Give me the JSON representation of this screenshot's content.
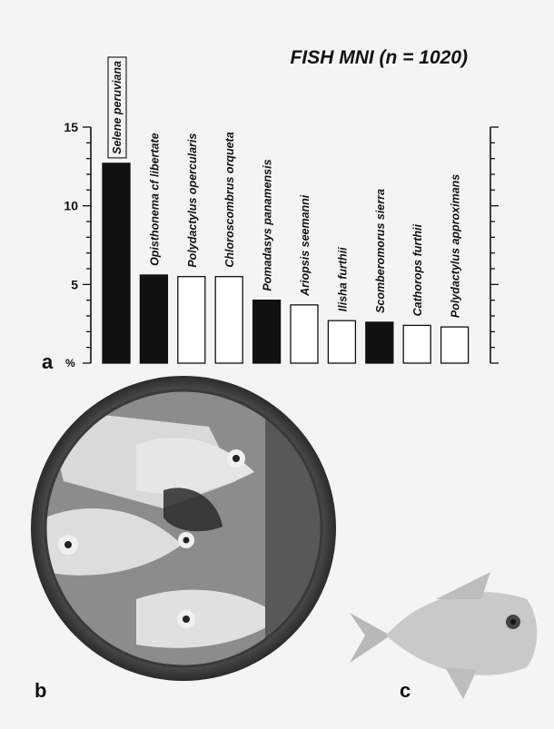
{
  "chart_data": {
    "type": "bar",
    "title": "FISH MNI (n = 1020)",
    "ylabel": "%",
    "ylim": [
      0,
      15
    ],
    "yticks": [
      "5",
      "10",
      "15"
    ],
    "categories": [
      "Selene peruviana",
      "Opisthonema cf libertate",
      "Polydactylus opercularis",
      "Chloroscombrus orqueta",
      "Pomadasys panamensis",
      "Ariopsis seemanni",
      "Ilisha furthii",
      "Scomberomorus sierra",
      "Cathorops furthii",
      "Polydactylus approximans"
    ],
    "values": [
      12.7,
      5.6,
      5.5,
      5.5,
      4.0,
      3.7,
      2.7,
      2.6,
      2.4,
      2.3
    ],
    "fill": [
      "black",
      "black",
      "white",
      "white",
      "black",
      "white",
      "white",
      "black",
      "white",
      "white"
    ],
    "boxed_label_index": 0,
    "grid": false,
    "legend": "none"
  },
  "panels": {
    "a": "a",
    "b": "b",
    "c": "c"
  },
  "images": {
    "plate": "painted ceramic plate with fish motifs",
    "fish": "Selene peruviana fish specimen"
  }
}
